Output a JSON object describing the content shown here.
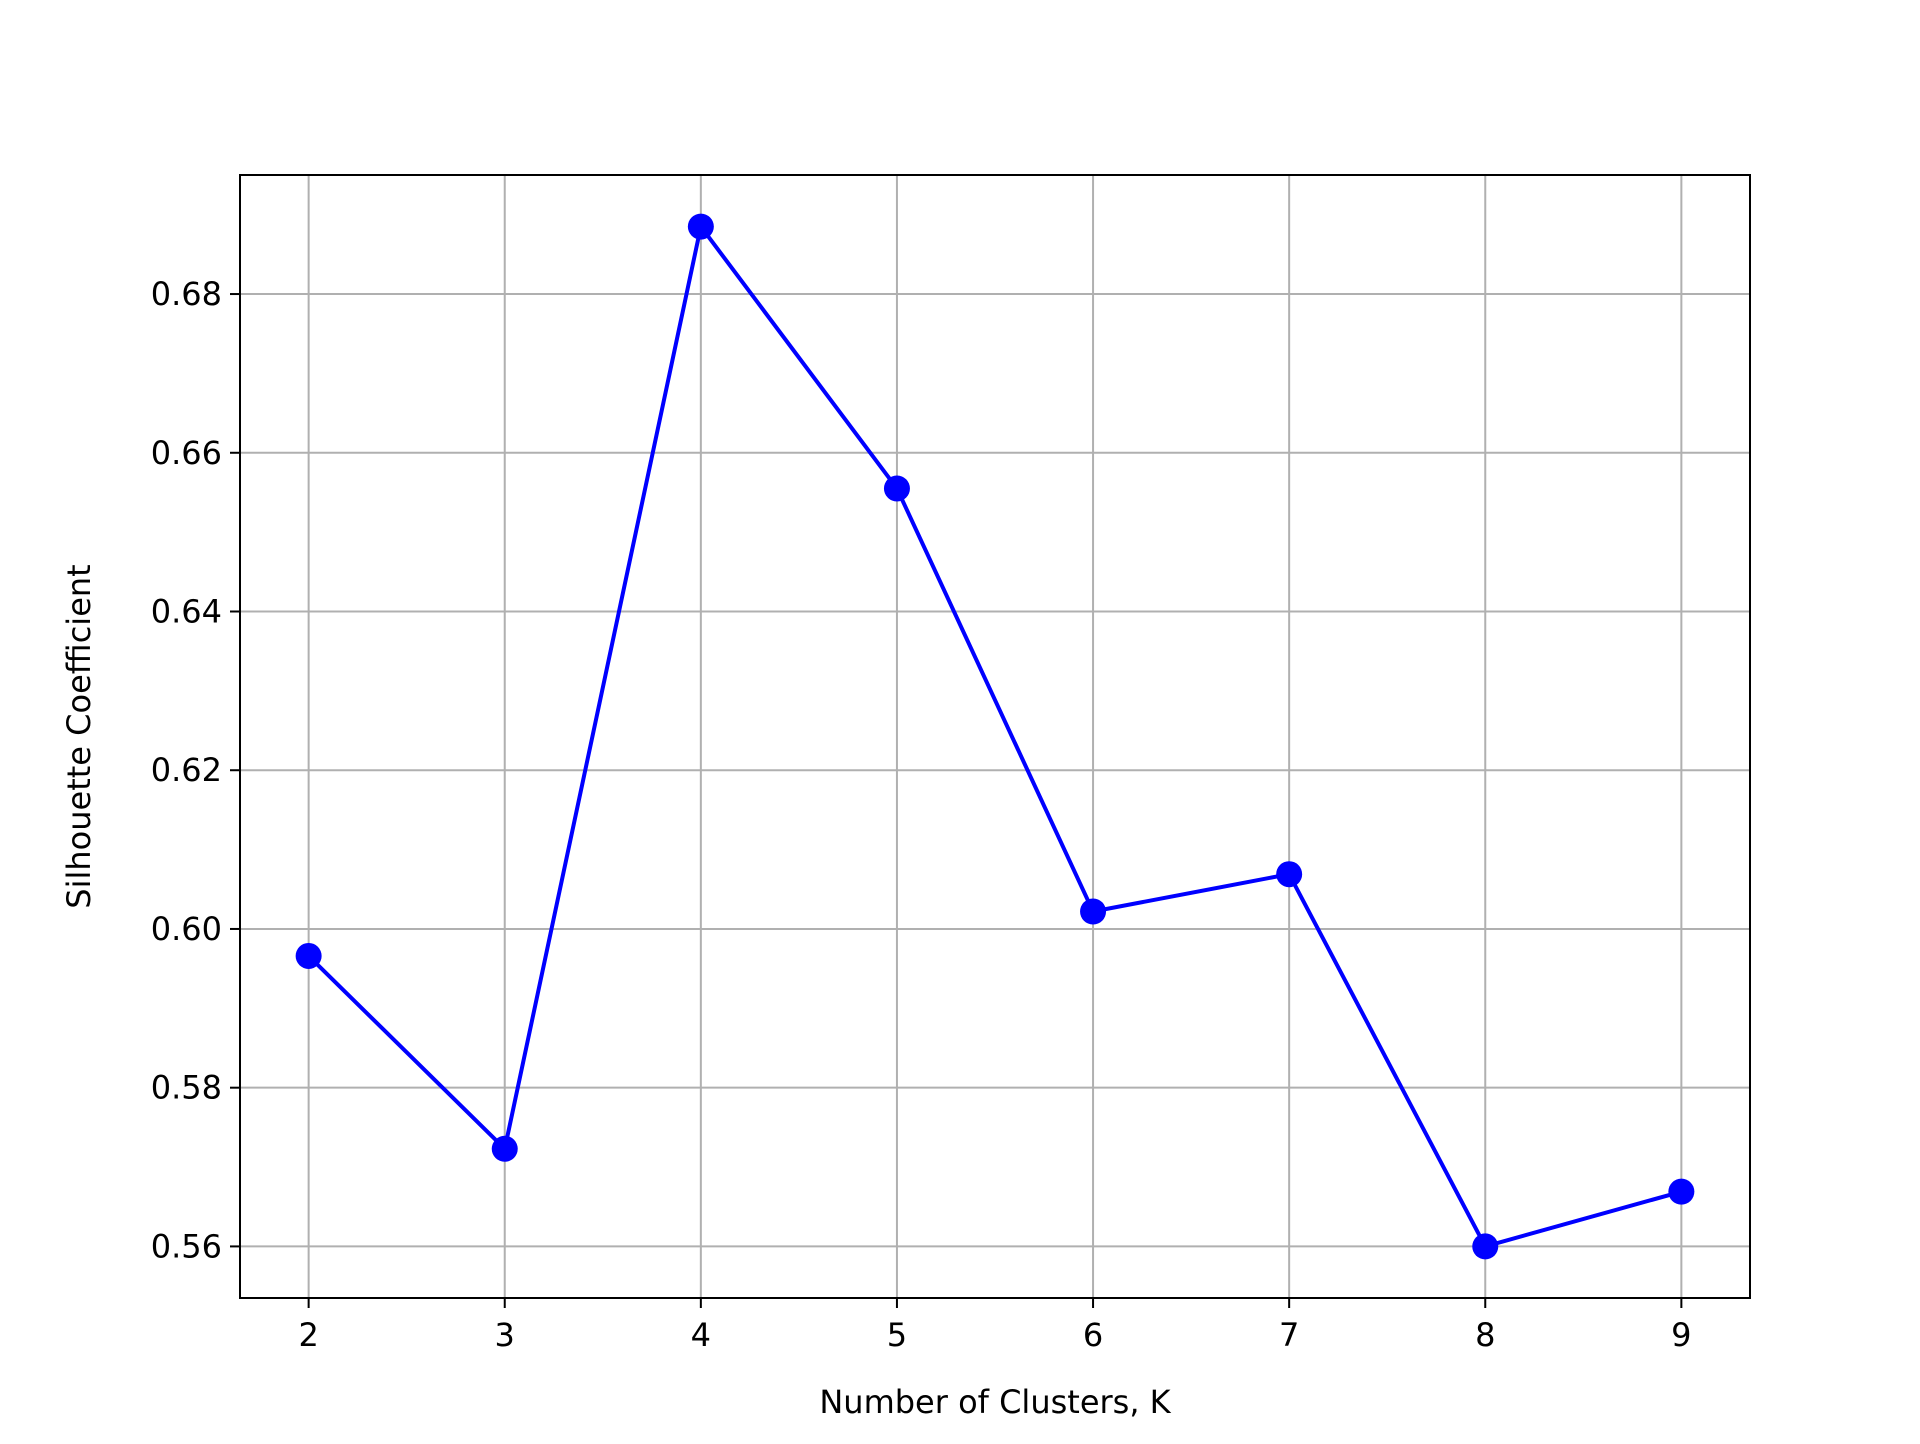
{
  "chart_data": {
    "type": "line",
    "title": "",
    "xlabel": "Number of Clusters, K",
    "ylabel": "Silhouette Coefficient",
    "x": [
      2,
      3,
      4,
      5,
      6,
      7,
      8,
      9
    ],
    "series": [
      {
        "values": [
          0.5966,
          0.5723,
          0.6885,
          0.6555,
          0.6022,
          0.6069,
          0.56,
          0.5669
        ],
        "color": "#0000ff",
        "marker": "circle"
      }
    ],
    "xlim": [
      1.65,
      9.35
    ],
    "ylim": [
      0.5535,
      0.695
    ],
    "xticks": [
      2,
      3,
      4,
      5,
      6,
      7,
      8,
      9
    ],
    "xtick_labels": [
      "2",
      "3",
      "4",
      "5",
      "6",
      "7",
      "8",
      "9"
    ],
    "yticks": [
      0.56,
      0.58,
      0.6,
      0.62,
      0.64,
      0.66,
      0.68
    ],
    "ytick_labels": [
      "0.56",
      "0.58",
      "0.60",
      "0.62",
      "0.64",
      "0.66",
      "0.68"
    ],
    "grid": true,
    "grid_color": "#b0b0b0",
    "legend": false
  }
}
